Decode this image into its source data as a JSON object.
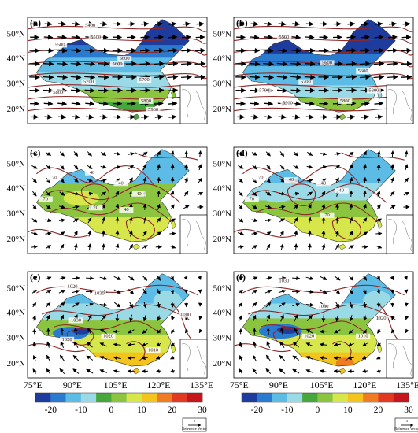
{
  "panels": [
    {
      "label": "(a)",
      "contour_labels": [
        "5400",
        "5500",
        "5500",
        "5600",
        "5600",
        "5700",
        "5700",
        "5800",
        "5800",
        "5900"
      ]
    },
    {
      "label": "(b)",
      "contour_labels": [
        "5500",
        "5600",
        "5600",
        "5700",
        "5700",
        "5800",
        "5800",
        "5900"
      ]
    },
    {
      "label": "(c)",
      "contour_labels": [
        "70",
        "40",
        "40",
        "40",
        "70",
        "70",
        "40"
      ]
    },
    {
      "label": "(d)",
      "contour_labels": [
        "70",
        "40",
        "40",
        "70",
        "40",
        "70"
      ]
    },
    {
      "label": "(e)",
      "contour_labels": [
        "1020",
        "1030",
        "1030",
        "1020",
        "1020",
        "1000",
        "1010"
      ]
    },
    {
      "label": "(f)",
      "contour_labels": [
        "1030",
        "1030",
        "1020",
        "1020",
        "1010"
      ]
    }
  ],
  "latitude_labels": [
    "50°N",
    "40°N",
    "30°N",
    "20°N"
  ],
  "longitude_labels": [
    "75°E",
    "90°E",
    "105°E",
    "120°E",
    "135°E"
  ],
  "colorbar": {
    "colors": [
      "#1e3c9e",
      "#2a7bd0",
      "#5cbce6",
      "#9ad9e6",
      "#46a83c",
      "#8bc53f",
      "#d7e64a",
      "#f3c41b",
      "#ef7b22",
      "#e23a22",
      "#c4161c"
    ],
    "tick_labels": [
      "-20",
      "-10",
      "0",
      "10",
      "20",
      "30"
    ]
  },
  "reference_vector": {
    "magnitude": "5",
    "label": "Reference Vector"
  },
  "colors": {
    "contour": "#8e2727",
    "vector": "#000000"
  }
}
